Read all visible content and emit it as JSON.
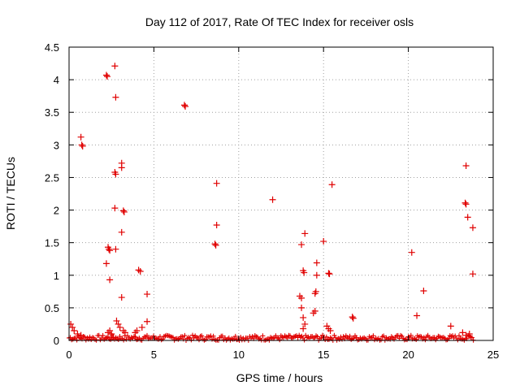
{
  "chart_data": {
    "type": "scatter",
    "title": "Day 112 of 2017, Rate Of TEC Index for receiver osls",
    "xlabel": "GPS time / hours",
    "ylabel": "ROTI / TECUs",
    "xlim": [
      0,
      25
    ],
    "ylim": [
      0,
      4.5
    ],
    "xticks": [
      0,
      5,
      10,
      15,
      20,
      25
    ],
    "xtick_labels": [
      "0",
      "5",
      "10",
      "15",
      "20",
      "25"
    ],
    "yticks": [
      0,
      0.5,
      1,
      1.5,
      2,
      2.5,
      3,
      3.5,
      4,
      4.5
    ],
    "ytick_labels": [
      "0",
      "0.5",
      "1",
      "1.5",
      "2",
      "2.5",
      "3",
      "3.5",
      "4",
      "4.5"
    ],
    "grid": true,
    "marker": "+",
    "color": "#e00000",
    "series": [
      {
        "points": [
          [
            0.1,
            0.25
          ],
          [
            0.2,
            0.2
          ],
          [
            0.3,
            0.15
          ],
          [
            0.5,
            0.1
          ],
          [
            0.7,
            0.08
          ],
          [
            0.7,
            3.12
          ],
          [
            0.75,
            3.0
          ],
          [
            0.8,
            2.98
          ],
          [
            2.2,
            4.07
          ],
          [
            2.25,
            4.05
          ],
          [
            2.7,
            4.21
          ],
          [
            2.75,
            3.73
          ],
          [
            2.3,
            1.43
          ],
          [
            2.35,
            1.4
          ],
          [
            2.4,
            1.38
          ],
          [
            2.2,
            1.18
          ],
          [
            2.4,
            0.93
          ],
          [
            2.6,
            0.05
          ],
          [
            2.5,
            0.1
          ],
          [
            2.4,
            0.15
          ],
          [
            2.3,
            0.12
          ],
          [
            2.7,
            2.58
          ],
          [
            2.75,
            2.55
          ],
          [
            2.7,
            2.03
          ],
          [
            2.75,
            1.4
          ],
          [
            3.1,
            2.72
          ],
          [
            3.1,
            2.65
          ],
          [
            3.2,
            1.99
          ],
          [
            3.25,
            1.97
          ],
          [
            3.1,
            1.66
          ],
          [
            3.1,
            0.66
          ],
          [
            2.8,
            0.3
          ],
          [
            2.9,
            0.25
          ],
          [
            3.0,
            0.2
          ],
          [
            3.2,
            0.15
          ],
          [
            3.3,
            0.12
          ],
          [
            4.1,
            1.08
          ],
          [
            4.2,
            1.06
          ],
          [
            4.3,
            0.2
          ],
          [
            4.0,
            0.15
          ],
          [
            3.9,
            0.12
          ],
          [
            4.6,
            0.71
          ],
          [
            4.6,
            0.29
          ],
          [
            6.8,
            3.61
          ],
          [
            6.85,
            3.59
          ],
          [
            8.7,
            2.41
          ],
          [
            8.7,
            1.77
          ],
          [
            8.6,
            1.48
          ],
          [
            8.65,
            1.46
          ],
          [
            12.0,
            2.16
          ],
          [
            13.7,
            1.47
          ],
          [
            13.9,
            1.64
          ],
          [
            13.8,
            1.07
          ],
          [
            13.85,
            1.04
          ],
          [
            13.6,
            0.68
          ],
          [
            13.7,
            0.65
          ],
          [
            13.7,
            0.5
          ],
          [
            13.8,
            0.35
          ],
          [
            13.9,
            0.25
          ],
          [
            13.8,
            0.18
          ],
          [
            14.4,
            0.42
          ],
          [
            14.5,
            0.45
          ],
          [
            14.6,
            1.19
          ],
          [
            14.6,
            1.0
          ],
          [
            14.55,
            0.75
          ],
          [
            14.5,
            0.72
          ],
          [
            15.0,
            1.52
          ],
          [
            15.5,
            2.39
          ],
          [
            15.3,
            1.03
          ],
          [
            15.35,
            1.02
          ],
          [
            15.2,
            0.22
          ],
          [
            15.3,
            0.18
          ],
          [
            15.4,
            0.15
          ],
          [
            16.7,
            0.36
          ],
          [
            16.75,
            0.34
          ],
          [
            20.2,
            1.35
          ],
          [
            20.5,
            0.38
          ],
          [
            20.9,
            0.76
          ],
          [
            22.5,
            0.22
          ],
          [
            23.4,
            2.68
          ],
          [
            23.35,
            2.11
          ],
          [
            23.4,
            2.09
          ],
          [
            23.5,
            1.89
          ],
          [
            23.8,
            1.73
          ],
          [
            23.8,
            1.02
          ],
          [
            23.6,
            0.1
          ],
          [
            23.4,
            0.08
          ],
          [
            23.2,
            0.12
          ]
        ]
      }
    ],
    "baseline_band": {
      "x_range": [
        0.0,
        23.9
      ],
      "y_range": [
        0.0,
        0.08
      ]
    }
  }
}
